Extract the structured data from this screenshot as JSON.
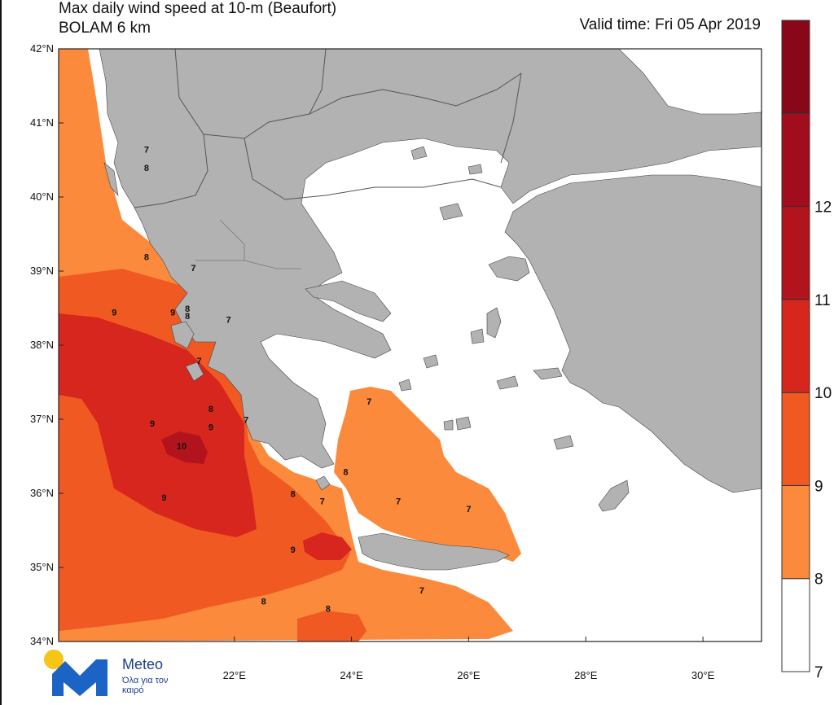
{
  "map": {
    "title_line1": "Max daily wind speed at 10-m (Beaufort)",
    "title_line2": "BOLAM 6 km",
    "valid_time": "Valid time: Fri 05 Apr 2019",
    "lat_labels": [
      "42°N",
      "41°N",
      "40°N",
      "39°N",
      "38°N",
      "37°N",
      "36°N",
      "35°N",
      "34°N"
    ],
    "lon_labels": [
      "22°E",
      "24°E",
      "26°E",
      "28°E",
      "30°E"
    ],
    "colors": {
      "land": "#b2b2b2",
      "sea_calm": "#ffffff",
      "bf7": "#fb8a3c",
      "bf8": "#f05a22",
      "bf9": "#d7261e",
      "bf10": "#b3131c",
      "bf11": "#880819"
    },
    "wind_labels": [
      {
        "text": "7",
        "lon": 20.5,
        "lat": 40.6
      },
      {
        "text": "8",
        "lon": 20.5,
        "lat": 40.35
      },
      {
        "text": "8",
        "lon": 20.5,
        "lat": 39.15
      },
      {
        "text": "7",
        "lon": 21.3,
        "lat": 39.0
      },
      {
        "text": "9",
        "lon": 19.95,
        "lat": 38.4
      },
      {
        "text": "9",
        "lon": 20.95,
        "lat": 38.4
      },
      {
        "text": "8",
        "lon": 21.2,
        "lat": 38.45
      },
      {
        "text": "8",
        "lon": 21.2,
        "lat": 38.35
      },
      {
        "text": "7",
        "lon": 21.9,
        "lat": 38.3
      },
      {
        "text": "7",
        "lon": 21.4,
        "lat": 37.75
      },
      {
        "text": "8",
        "lon": 21.6,
        "lat": 37.1
      },
      {
        "text": "9",
        "lon": 21.6,
        "lat": 36.85
      },
      {
        "text": "7",
        "lon": 22.2,
        "lat": 36.95
      },
      {
        "text": "9",
        "lon": 20.6,
        "lat": 36.9
      },
      {
        "text": "10",
        "lon": 21.1,
        "lat": 36.6
      },
      {
        "text": "9",
        "lon": 20.8,
        "lat": 35.9
      },
      {
        "text": "8",
        "lon": 23.0,
        "lat": 35.95
      },
      {
        "text": "7",
        "lon": 23.5,
        "lat": 35.85
      },
      {
        "text": "9",
        "lon": 23.0,
        "lat": 35.2
      },
      {
        "text": "8",
        "lon": 23.9,
        "lat": 36.25
      },
      {
        "text": "7",
        "lon": 24.3,
        "lat": 37.2
      },
      {
        "text": "7",
        "lon": 24.8,
        "lat": 35.85
      },
      {
        "text": "7",
        "lon": 25.2,
        "lat": 34.65
      },
      {
        "text": "7",
        "lon": 26.0,
        "lat": 35.75
      },
      {
        "text": "8",
        "lon": 22.5,
        "lat": 34.5
      },
      {
        "text": "8",
        "lon": 23.6,
        "lat": 34.4
      }
    ]
  },
  "legend": {
    "levels": [
      {
        "label": "7",
        "color": "#ffffff"
      },
      {
        "label": "8",
        "color": "#fb8a3c"
      },
      {
        "label": "9",
        "color": "#f05a22"
      },
      {
        "label": "10",
        "color": "#d7261e"
      },
      {
        "label": "11",
        "color": "#b3131c"
      },
      {
        "label": "12",
        "color": "#a20d1e"
      },
      {
        "label": "",
        "color": "#880819"
      }
    ]
  },
  "logo": {
    "brand": "Meteo",
    "tagline": "Όλα για τον καιρό"
  }
}
